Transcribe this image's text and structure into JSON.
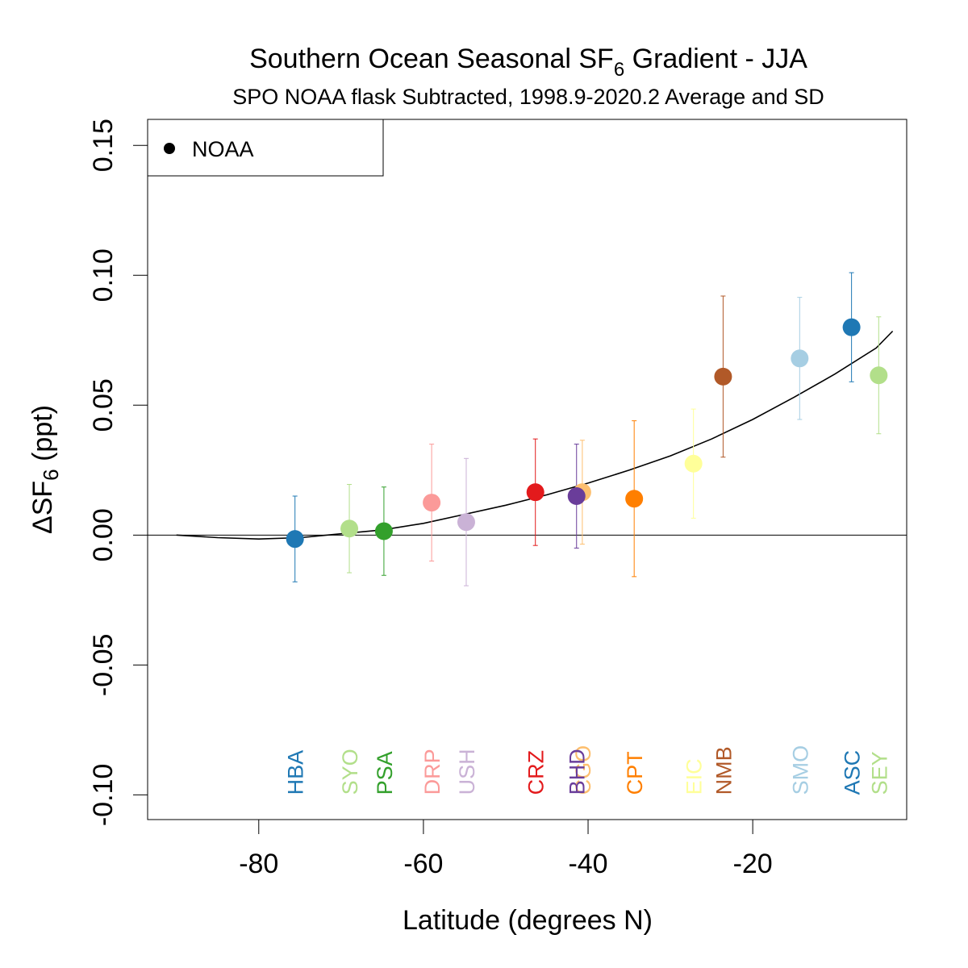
{
  "chart_data": {
    "type": "scatter",
    "title": {
      "prefix": "Southern Ocean Seasonal SF",
      "subscript": "6",
      "suffix": " Gradient - JJA"
    },
    "subtitle": "SPO NOAA flask Subtracted, 1998.9-2020.2 Average and SD",
    "xlabel": "Latitude (degrees N)",
    "ylabel": {
      "prefix": "ΔSF",
      "subscript": "6",
      "suffix": " (ppt)"
    },
    "xlim": [
      -93.5,
      -1.3
    ],
    "ylim": [
      -0.1095,
      0.16
    ],
    "x_ticks": [
      {
        "value": -80,
        "label": "-80"
      },
      {
        "value": -60,
        "label": "-60"
      },
      {
        "value": -40,
        "label": "-40"
      },
      {
        "value": -20,
        "label": "-20"
      }
    ],
    "y_ticks": [
      {
        "value": -0.1,
        "label": "-0.10"
      },
      {
        "value": -0.05,
        "label": "-0.05"
      },
      {
        "value": 0.0,
        "label": "0.00"
      },
      {
        "value": 0.05,
        "label": "0.05"
      },
      {
        "value": 0.1,
        "label": "0.10"
      },
      {
        "value": 0.15,
        "label": "0.15"
      }
    ],
    "legend": {
      "position": "top-left",
      "entries": [
        {
          "label": "NOAA",
          "marker": "filled-circle",
          "color": "#000000"
        }
      ]
    },
    "reference_line_y": 0,
    "station_label_y": -0.1,
    "series": [
      {
        "name": "NOAA",
        "points": [
          {
            "station": "HBA",
            "x": -75.6,
            "y": -0.0015,
            "sd": 0.0165,
            "color": "#1F78B4"
          },
          {
            "station": "SYO",
            "x": -69.0,
            "y": 0.0025,
            "sd": 0.017,
            "color": "#B2DF8A"
          },
          {
            "station": "PSA",
            "x": -64.8,
            "y": 0.0015,
            "sd": 0.017,
            "color": "#33A02C"
          },
          {
            "station": "DRP",
            "x": -59.0,
            "y": 0.0125,
            "sd": 0.0225,
            "color": "#FB9A99"
          },
          {
            "station": "USH",
            "x": -54.8,
            "y": 0.005,
            "sd": 0.0245,
            "color": "#CAB2D6"
          },
          {
            "station": "CRZ",
            "x": -46.4,
            "y": 0.0165,
            "sd": 0.0205,
            "color": "#E31A1C"
          },
          {
            "station": "CGO",
            "x": -40.7,
            "y": 0.0165,
            "sd": 0.02,
            "color": "#FDBF6F"
          },
          {
            "station": "BHD",
            "x": -41.4,
            "y": 0.015,
            "sd": 0.02,
            "color": "#6A3D9A"
          },
          {
            "station": "CPT",
            "x": -34.4,
            "y": 0.014,
            "sd": 0.03,
            "color": "#FF7F00"
          },
          {
            "station": "EIC",
            "x": -27.2,
            "y": 0.0275,
            "sd": 0.021,
            "color": "#FFFF99"
          },
          {
            "station": "NMB",
            "x": -23.6,
            "y": 0.061,
            "sd": 0.031,
            "color": "#B15928"
          },
          {
            "station": "SMO",
            "x": -14.3,
            "y": 0.068,
            "sd": 0.0235,
            "color": "#A6CEE3"
          },
          {
            "station": "ASC",
            "x": -8.0,
            "y": 0.08,
            "sd": 0.021,
            "color": "#1F78B4"
          },
          {
            "station": "SEY",
            "x": -4.7,
            "y": 0.0615,
            "sd": 0.0225,
            "color": "#B2DF8A"
          }
        ]
      }
    ],
    "fit_curve": {
      "color": "#000000",
      "points": [
        [
          -90,
          0.0
        ],
        [
          -85,
          -0.001
        ],
        [
          -80,
          -0.0015
        ],
        [
          -75,
          -0.001
        ],
        [
          -70,
          0.0005
        ],
        [
          -65,
          0.002
        ],
        [
          -60,
          0.0045
        ],
        [
          -55,
          0.008
        ],
        [
          -50,
          0.0115
        ],
        [
          -45,
          0.0155
        ],
        [
          -40,
          0.02
        ],
        [
          -35,
          0.025
        ],
        [
          -30,
          0.0305
        ],
        [
          -25,
          0.037
        ],
        [
          -20,
          0.0445
        ],
        [
          -15,
          0.053
        ],
        [
          -10,
          0.062
        ],
        [
          -5,
          0.072
        ],
        [
          -3.0,
          0.0785
        ]
      ]
    }
  }
}
